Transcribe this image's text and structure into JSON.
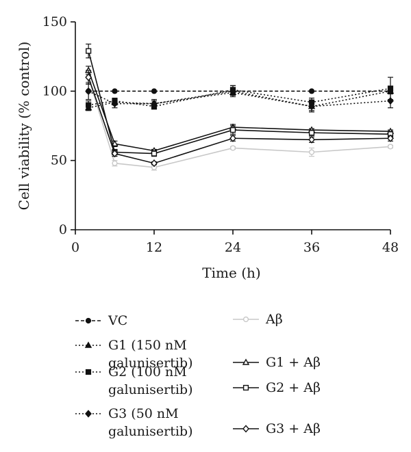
{
  "chart_data": {
    "type": "line",
    "xlabel": "Time (h)",
    "ylabel": "Cell viability (% control)",
    "xlim": [
      0,
      48
    ],
    "ylim": [
      0,
      150
    ],
    "xticks": [
      0,
      12,
      24,
      36,
      48
    ],
    "yticks": [
      0,
      50,
      100,
      150
    ],
    "grid": false,
    "legend_position": "bottom",
    "series": [
      {
        "name": "VC",
        "line": "dashed",
        "color": "#111111",
        "marker": "circle-filled",
        "x": [
          2,
          6,
          12,
          24,
          36,
          48
        ],
        "y": [
          100,
          100,
          100,
          100,
          100,
          100
        ],
        "err": [
          0,
          0,
          0,
          0,
          0,
          0
        ]
      },
      {
        "name": "Aβ",
        "line": "solid",
        "color": "#c8c8c8",
        "marker": "circle-open",
        "x": [
          2,
          6,
          12,
          24,
          36,
          48
        ],
        "y": [
          110,
          48,
          45,
          59,
          56,
          60
        ],
        "err": [
          3,
          2,
          2,
          1,
          3,
          1
        ]
      },
      {
        "name": "G1 (150 nM galunisertib)",
        "line": "dotted",
        "color": "#111111",
        "marker": "triangle-filled",
        "x": [
          2,
          6,
          12,
          24,
          36,
          48
        ],
        "y": [
          88,
          92,
          91,
          99,
          89,
          100
        ],
        "err": [
          2,
          2,
          2,
          2,
          3,
          2
        ]
      },
      {
        "name": "G1 + Aβ",
        "line": "solid",
        "color": "#111111",
        "marker": "triangle-open",
        "x": [
          2,
          6,
          12,
          24,
          36,
          48
        ],
        "y": [
          115,
          62,
          57,
          74,
          72,
          71
        ],
        "err": [
          3,
          2,
          1,
          2,
          1,
          1
        ]
      },
      {
        "name": "G2 (100 nM galunisertib)",
        "line": "dotted",
        "color": "#111111",
        "marker": "square-filled",
        "x": [
          2,
          6,
          12,
          24,
          36,
          48
        ],
        "y": [
          90,
          93,
          89,
          101,
          92,
          102
        ],
        "err": [
          3,
          2,
          2,
          3,
          3,
          8
        ]
      },
      {
        "name": "G2 + Aβ",
        "line": "solid",
        "color": "#111111",
        "marker": "square-open",
        "x": [
          2,
          6,
          12,
          24,
          36,
          48
        ],
        "y": [
          129,
          56,
          55,
          72,
          70,
          69
        ],
        "err": [
          5,
          2,
          2,
          3,
          2,
          2
        ]
      },
      {
        "name": "G3 (50 nM galunisertib)",
        "line": "dotted",
        "color": "#111111",
        "marker": "diamond-filled",
        "x": [
          2,
          6,
          12,
          24,
          36,
          48
        ],
        "y": [
          100,
          91,
          91,
          100,
          89,
          93
        ],
        "err": [
          6,
          3,
          3,
          4,
          4,
          5
        ]
      },
      {
        "name": "G3 + Aβ",
        "line": "solid",
        "color": "#111111",
        "marker": "diamond-open",
        "x": [
          2,
          6,
          12,
          24,
          36,
          48
        ],
        "y": [
          110,
          55,
          48,
          66,
          65,
          66
        ],
        "err": [
          5,
          2,
          1,
          2,
          2,
          2
        ]
      }
    ]
  }
}
